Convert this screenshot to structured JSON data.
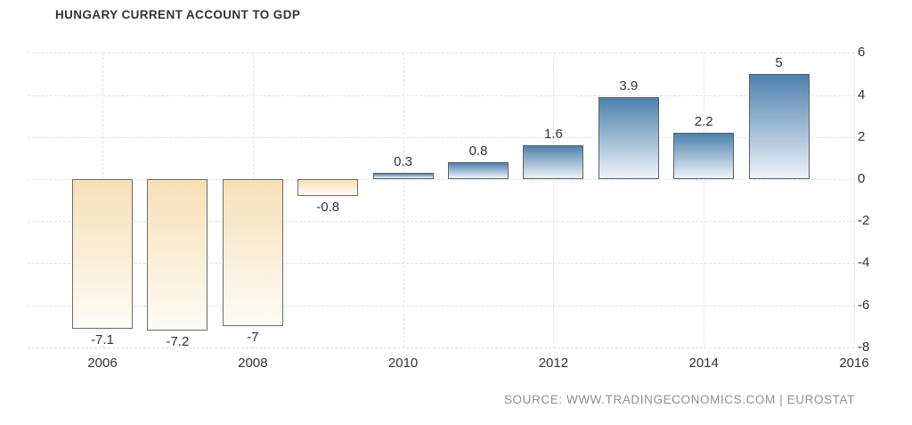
{
  "header": {
    "title": "HUNGARY CURRENT ACCOUNT TO GDP"
  },
  "footer": {
    "source": "SOURCE: WWW.TRADINGECONOMICS.COM | EUROSTAT"
  },
  "chart_data": {
    "type": "bar",
    "title": "HUNGARY CURRENT ACCOUNT TO GDP",
    "xlabel": "",
    "ylabel": "",
    "x": [
      2006,
      2007,
      2008,
      2009,
      2010,
      2011,
      2012,
      2013,
      2014,
      2015
    ],
    "values": [
      -7.1,
      -7.2,
      -7,
      -0.8,
      0.3,
      0.8,
      1.6,
      3.9,
      2.2,
      5
    ],
    "value_labels": [
      "-7.1",
      "-7.2",
      "-7",
      "-0.8",
      "0.3",
      "0.8",
      "1.6",
      "3.9",
      "2.2",
      "5"
    ],
    "x_tick_years": [
      2006,
      2008,
      2010,
      2012,
      2014,
      2016
    ],
    "x_tick_labels": [
      "2006",
      "2008",
      "2010",
      "2012",
      "2014",
      "2016"
    ],
    "y_tick_values": [
      6,
      4,
      2,
      0,
      -2,
      -4,
      -6,
      -8
    ],
    "y_tick_labels": [
      "6",
      "4",
      "2",
      "0",
      "-2",
      "-4",
      "-6",
      "-8"
    ],
    "xlim": [
      2005,
      2016
    ],
    "ylim": [
      -8,
      6
    ],
    "y_axis_side": "right",
    "grid": "dashed-both-axes",
    "legend": "none",
    "colors": {
      "positive_bar_top": "#4d81ae",
      "positive_bar_bottom": "#eef3f8",
      "negative_bar_top": "#f6e0b8",
      "negative_bar_bottom": "#fefcf6",
      "bar_border": "#5d6166",
      "gridline": "#e4e4e4",
      "axis_text": "#333333",
      "title_text": "#333333",
      "source_text": "#8f8f8f",
      "background": "#ffffff"
    }
  }
}
